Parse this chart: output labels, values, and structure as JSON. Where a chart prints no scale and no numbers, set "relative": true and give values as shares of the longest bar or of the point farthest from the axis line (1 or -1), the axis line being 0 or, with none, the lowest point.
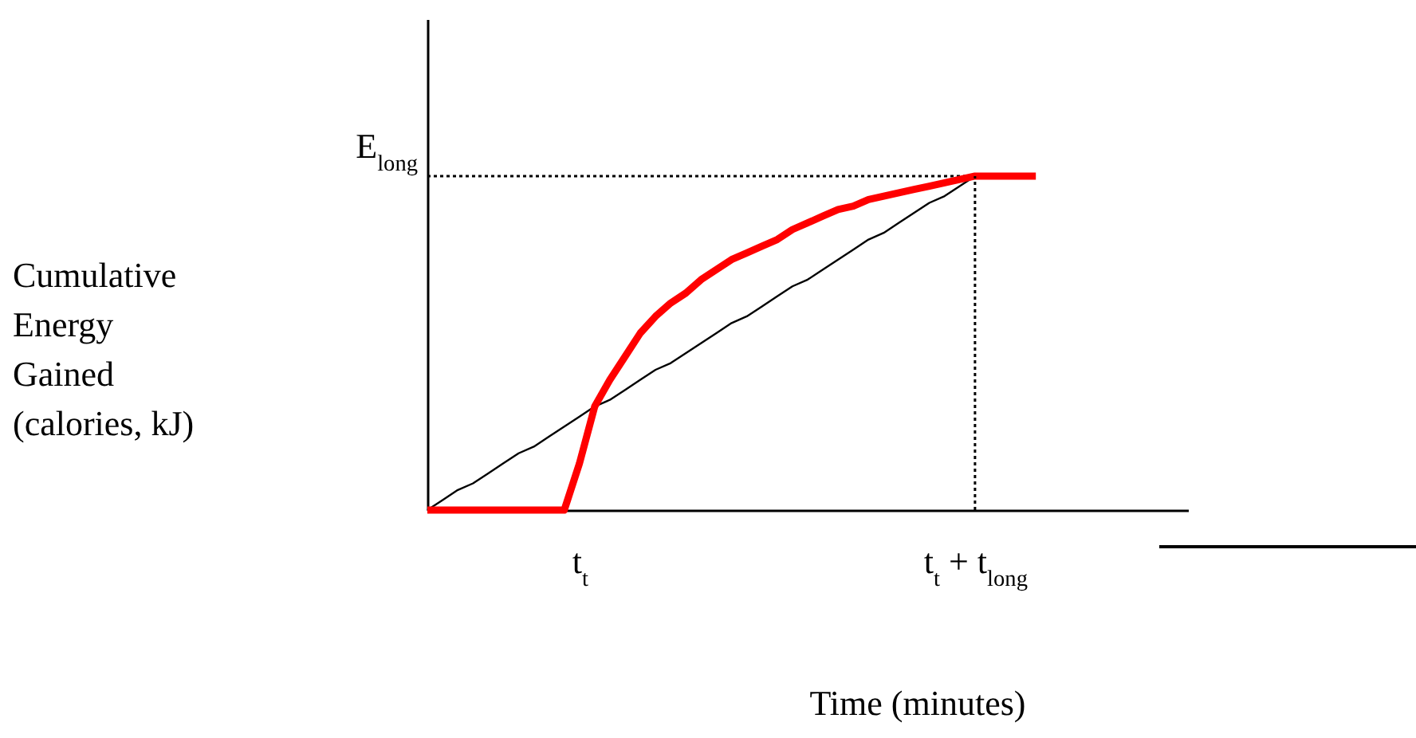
{
  "chart_data": {
    "type": "line",
    "relative": true,
    "xlabel": "Time (minutes)",
    "annotations": [
      "Cumulative Energy Gained (calories, kJ)",
      "E$_{long}$"
    ],
    "categories": [
      null,
      null,
      null,
      null,
      null,
      null,
      null,
      null,
      null,
      null,
      "t$_{t}$",
      null,
      null,
      null,
      null,
      null,
      null,
      null,
      null,
      null,
      null,
      null,
      null,
      null,
      null,
      null,
      null,
      null,
      null,
      null,
      null,
      null,
      null,
      null,
      null,
      null,
      "t$_{t}$ + t$_{long}$",
      null,
      null,
      null,
      null,
      null,
      null,
      null,
      null,
      null,
      null,
      null,
      null,
      null,
      null
    ],
    "tick_labels": "x",
    "grid": false,
    "marker": "none",
    "line_style": "solid",
    "series": [
      {
        "color": "#000000",
        "line_style": "dotted",
        "values": [
          1,
          1,
          1,
          1,
          1,
          1,
          1,
          1,
          1,
          1,
          1,
          1,
          1,
          1,
          1,
          1,
          1,
          1,
          1,
          1,
          1,
          1,
          1,
          1,
          1,
          1,
          1,
          1,
          1,
          1,
          1,
          1,
          1,
          1,
          1,
          1,
          1,
          null,
          null,
          null,
          null,
          null,
          null,
          null,
          null,
          null,
          null,
          null,
          null,
          null,
          null
        ]
      },
      {
        "color": "#000000",
        "values": [
          0,
          0.03,
          0.06,
          0.08,
          0.11,
          0.14,
          0.17,
          0.19,
          0.22,
          0.25,
          0.28,
          0.31,
          0.33,
          0.36,
          0.39,
          0.42,
          0.44,
          0.47,
          0.5,
          0.53,
          0.56,
          0.58,
          0.61,
          0.64,
          0.67,
          0.69,
          0.72,
          0.75,
          0.78,
          0.81,
          0.83,
          0.86,
          0.89,
          0.92,
          0.94,
          0.97,
          1,
          null,
          null,
          null,
          null,
          null,
          null,
          null,
          null,
          null,
          null,
          null,
          null,
          null,
          null
        ]
      },
      {
        "color": "#ff0000",
        "values": [
          0,
          0,
          0,
          0,
          0,
          0,
          0,
          0,
          0,
          0,
          0.14,
          0.31,
          0.39,
          0.46,
          0.53,
          0.58,
          0.62,
          0.65,
          0.69,
          0.72,
          0.75,
          0.77,
          0.79,
          0.81,
          0.84,
          0.86,
          0.88,
          0.9,
          0.91,
          0.93,
          0.94,
          0.95,
          0.96,
          0.97,
          0.98,
          0.99,
          1,
          1,
          1,
          1,
          1,
          null,
          null,
          null,
          null,
          null,
          null,
          null,
          null,
          null,
          null
        ]
      }
    ],
    "ref_lines": [
      {
        "axis": "x",
        "value": "t$_{t}$ + t$_{long}$",
        "line_style": "dotted"
      }
    ]
  }
}
